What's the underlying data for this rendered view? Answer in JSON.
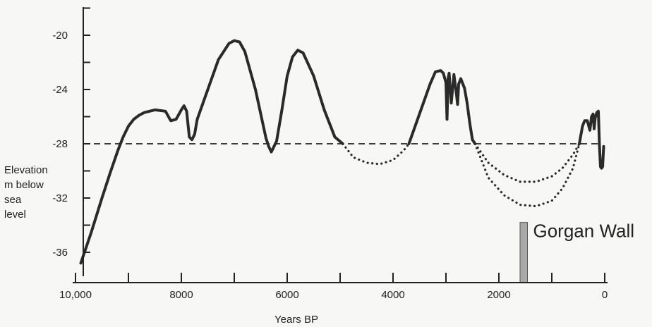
{
  "chart_data": {
    "type": "line",
    "title": "",
    "xlabel": "Years BP",
    "ylabel_lines": [
      "Elevation",
      "m below",
      "sea",
      "level"
    ],
    "x_ticks": [
      10000,
      8000,
      6000,
      4000,
      2000,
      0
    ],
    "x_tick_labels": [
      "10,000",
      "8000",
      "6000",
      "4000",
      "2000",
      "0"
    ],
    "y_ticks": [
      -20,
      -24,
      -28,
      -32,
      -36
    ],
    "y_tick_labels": [
      "-20",
      "-24",
      "-28",
      "-32",
      "-36"
    ],
    "xlim": [
      10000,
      0
    ],
    "ylim": [
      -37.5,
      -16
    ],
    "x_reversed": true,
    "reference_line": {
      "y": -28,
      "style": "dashed"
    },
    "series": [
      {
        "style": "solid",
        "x": [
          9900,
          9700,
          9500,
          9350,
          9200,
          9100,
          9000,
          8900,
          8800,
          8700,
          8500,
          8300,
          8200,
          8100,
          8000,
          7950,
          7900,
          7850,
          7800,
          7750,
          7700,
          7500,
          7300,
          7100,
          7000,
          6900,
          6800,
          6600,
          6400,
          6350,
          6300,
          6200,
          6100,
          6000,
          5900,
          5800,
          5700,
          5500,
          5300,
          5100,
          4950
        ],
        "y": [
          -36.8,
          -34.5,
          -32,
          -30.2,
          -28.5,
          -27.5,
          -26.7,
          -26.2,
          -25.9,
          -25.7,
          -25.5,
          -25.6,
          -26.3,
          -26.2,
          -25.5,
          -25.2,
          -25.6,
          -27.5,
          -27.7,
          -27.3,
          -26.2,
          -24.0,
          -21.8,
          -20.6,
          -20.4,
          -20.5,
          -21.2,
          -24.0,
          -27.6,
          -28.2,
          -28.6,
          -27.8,
          -25.5,
          -23.0,
          -21.6,
          -21.1,
          -21.3,
          -23.0,
          -25.5,
          -27.5,
          -28.0
        ]
      },
      {
        "style": "dotted",
        "x": [
          4950,
          4750,
          4500,
          4250,
          4000,
          3800,
          3700
        ],
        "y": [
          -28,
          -29.0,
          -29.4,
          -29.5,
          -29.2,
          -28.5,
          -28
        ]
      },
      {
        "style": "solid",
        "x": [
          3700,
          3500,
          3300,
          3200,
          3100,
          3050,
          3000,
          2980,
          2960,
          2940,
          2900,
          2850,
          2800,
          2780,
          2760,
          2720,
          2650,
          2600,
          2550,
          2500,
          2450
        ],
        "y": [
          -28,
          -25.8,
          -23.6,
          -22.7,
          -22.6,
          -22.8,
          -23.5,
          -26.2,
          -23.2,
          -22.8,
          -25.0,
          -22.9,
          -24.4,
          -25.1,
          -23.6,
          -23.2,
          -23.9,
          -25.0,
          -26.5,
          -27.7,
          -28
        ]
      },
      {
        "style": "dotted",
        "x": [
          2450,
          2200,
          1900,
          1600,
          1300,
          1000,
          800,
          600,
          480
        ],
        "y": [
          -28,
          -29.4,
          -30.3,
          -30.8,
          -30.8,
          -30.4,
          -29.8,
          -28.8,
          -28
        ]
      },
      {
        "style": "dotted",
        "x": [
          2450,
          2200,
          1900,
          1600,
          1300,
          1000,
          800,
          600,
          480
        ],
        "y": [
          -28,
          -30.5,
          -31.8,
          -32.5,
          -32.6,
          -32.2,
          -31.3,
          -29.8,
          -28
        ]
      },
      {
        "style": "solid",
        "x": [
          480,
          420,
          380,
          330,
          280,
          250,
          220,
          200,
          180,
          150,
          120,
          100,
          80,
          60,
          40,
          20
        ],
        "y": [
          -28,
          -26.7,
          -26.3,
          -26.3,
          -27.0,
          -26.0,
          -25.8,
          -26.9,
          -26.1,
          -25.7,
          -25.6,
          -28.1,
          -29.7,
          -29.8,
          -29.7,
          -28.2
        ]
      }
    ],
    "annotation": {
      "label": "Gorgan Wall",
      "x_start": 1600,
      "x_end": 1460,
      "y_bottom": -37.5,
      "y_top": -33.8,
      "color": "#a9a9a9"
    }
  }
}
